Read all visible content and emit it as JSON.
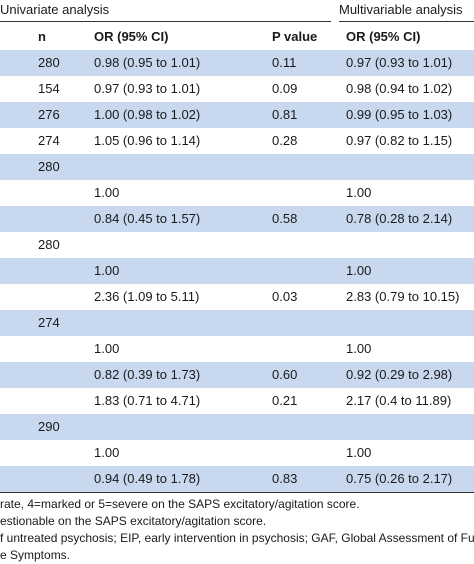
{
  "header": {
    "group_univariate": "Univariate analysis",
    "group_multivariable": "Multivariable analysis",
    "col_n": "n",
    "col_or_uni": "OR (95% CI)",
    "col_p": "P value",
    "col_or_multi": "OR (95% CI)"
  },
  "rows": [
    {
      "n": "280",
      "or_uni": "0.98 (0.95 to 1.01)",
      "p": "0.11",
      "or_multi": "0.97 (0.93 to 1.01)"
    },
    {
      "n": "154",
      "or_uni": "0.97 (0.93 to 1.01)",
      "p": "0.09",
      "or_multi": "0.98 (0.94 to 1.02)"
    },
    {
      "n": "276",
      "or_uni": "1.00 (0.98 to 1.02)",
      "p": "0.81",
      "or_multi": "0.99 (0.95 to 1.03)"
    },
    {
      "n": "274",
      "or_uni": "1.05 (0.96 to 1.14)",
      "p": "0.28",
      "or_multi": "0.97 (0.82 to 1.15)"
    },
    {
      "n": "280",
      "or_uni": "",
      "p": "",
      "or_multi": ""
    },
    {
      "n": "",
      "or_uni": "1.00",
      "p": "",
      "or_multi": "1.00"
    },
    {
      "n": "",
      "or_uni": "0.84 (0.45 to 1.57)",
      "p": "0.58",
      "or_multi": "0.78 (0.28 to 2.14)"
    },
    {
      "n": "280",
      "or_uni": "",
      "p": "",
      "or_multi": ""
    },
    {
      "n": "",
      "or_uni": "1.00",
      "p": "",
      "or_multi": "1.00"
    },
    {
      "n": "",
      "or_uni": "2.36 (1.09 to 5.11)",
      "p": "0.03",
      "or_multi": "2.83 (0.79 to 10.15)"
    },
    {
      "n": "274",
      "or_uni": "",
      "p": "",
      "or_multi": ""
    },
    {
      "n": "",
      "or_uni": "1.00",
      "p": "",
      "or_multi": "1.00"
    },
    {
      "n": "",
      "or_uni": "0.82 (0.39 to 1.73)",
      "p": "0.60",
      "or_multi": "0.92 (0.29 to 2.98)"
    },
    {
      "n": "",
      "or_uni": "1.83 (0.71 to 4.71)",
      "p": "0.21",
      "or_multi": "2.17 (0.4 to 11.89)"
    },
    {
      "n": "290",
      "or_uni": "",
      "p": "",
      "or_multi": ""
    },
    {
      "n": "",
      "or_uni": "1.00",
      "p": "",
      "or_multi": "1.00"
    },
    {
      "n": "",
      "or_uni": "0.94 (0.49 to 1.78)",
      "p": "0.83",
      "or_multi": "0.75 (0.26 to 2.17)"
    }
  ],
  "footnotes": [
    "rate, 4=marked or 5=severe on the SAPS excitatory/agitation score.",
    "estionable on the SAPS excitatory/agitation score.",
    "f untreated psychosis; EIP, early intervention in psychosis; GAF, Global Assessment of Fu",
    "e Symptoms."
  ]
}
